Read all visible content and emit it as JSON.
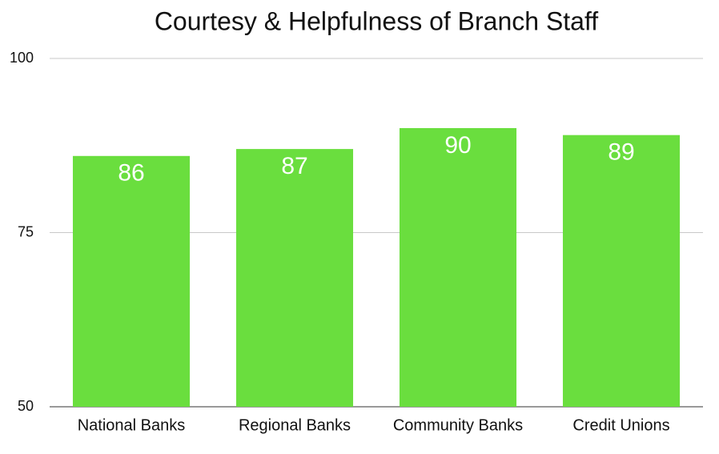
{
  "chart_data": {
    "type": "bar",
    "title": "Courtesy & Helpfulness of Branch Staff",
    "categories": [
      "National Banks",
      "Regional Banks",
      "Community Banks",
      "Credit Unions"
    ],
    "values": [
      86,
      87,
      90,
      89
    ],
    "color": "#6ade3e",
    "ylim": [
      50,
      100
    ],
    "yticks": [
      50,
      75,
      100
    ],
    "grid": true
  }
}
